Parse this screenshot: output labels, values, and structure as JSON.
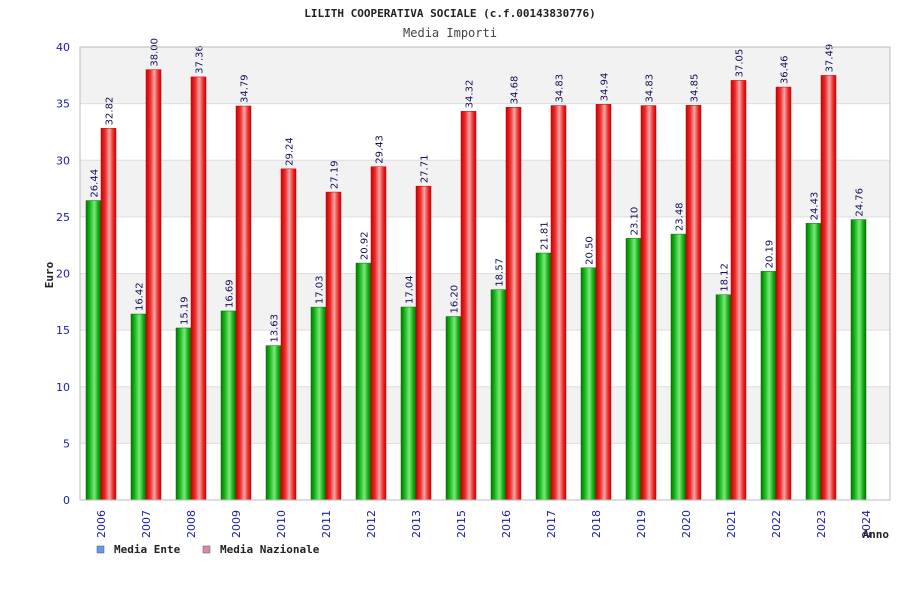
{
  "chart_data": {
    "type": "bar",
    "title": "LILITH COOPERATIVA SOCIALE (c.f.00143830776)",
    "subtitle": "Media Importi",
    "xlabel": "Anno",
    "ylabel": "Euro",
    "ylim": [
      0,
      40
    ],
    "yticks": [
      "0",
      "5",
      "10",
      "15",
      "20",
      "25",
      "30",
      "35",
      "40"
    ],
    "grid": true,
    "legend_position": "bottom-left",
    "categories": [
      "2006",
      "2007",
      "2008",
      "2009",
      "2010",
      "2011",
      "2012",
      "2013",
      "2015",
      "2016",
      "2017",
      "2018",
      "2019",
      "2020",
      "2021",
      "2022",
      "2023",
      "2024"
    ],
    "series": [
      {
        "name": "Media Ente",
        "color": "#11aa11",
        "legend_color": "#6699ee",
        "values": [
          26.44,
          16.42,
          15.19,
          16.69,
          13.63,
          17.03,
          20.92,
          17.04,
          16.2,
          18.57,
          21.81,
          20.5,
          23.1,
          23.48,
          18.12,
          20.19,
          24.43,
          24.76
        ],
        "labels": [
          "26.44",
          "16.42",
          "15.19",
          "16.69",
          "13.63",
          "17.03",
          "20.92",
          "17.04",
          "16.20",
          "18.57",
          "21.81",
          "20.50",
          "23.10",
          "23.48",
          "18.12",
          "20.19",
          "24.43",
          "24.76"
        ]
      },
      {
        "name": "Media Nazionale",
        "color": "#ee2222",
        "legend_color": "#dd88aa",
        "values": [
          32.82,
          38.0,
          37.36,
          34.79,
          29.24,
          27.19,
          29.43,
          27.71,
          34.32,
          34.68,
          34.83,
          34.94,
          34.83,
          34.85,
          37.05,
          36.46,
          37.49,
          null
        ],
        "labels": [
          "32.82",
          "38.00",
          "37.36",
          "34.79",
          "29.24",
          "27.19",
          "29.43",
          "27.71",
          "34.32",
          "34.68",
          "34.83",
          "34.94",
          "34.83",
          "34.85",
          "37.05",
          "36.46",
          "37.49",
          null
        ]
      }
    ]
  }
}
